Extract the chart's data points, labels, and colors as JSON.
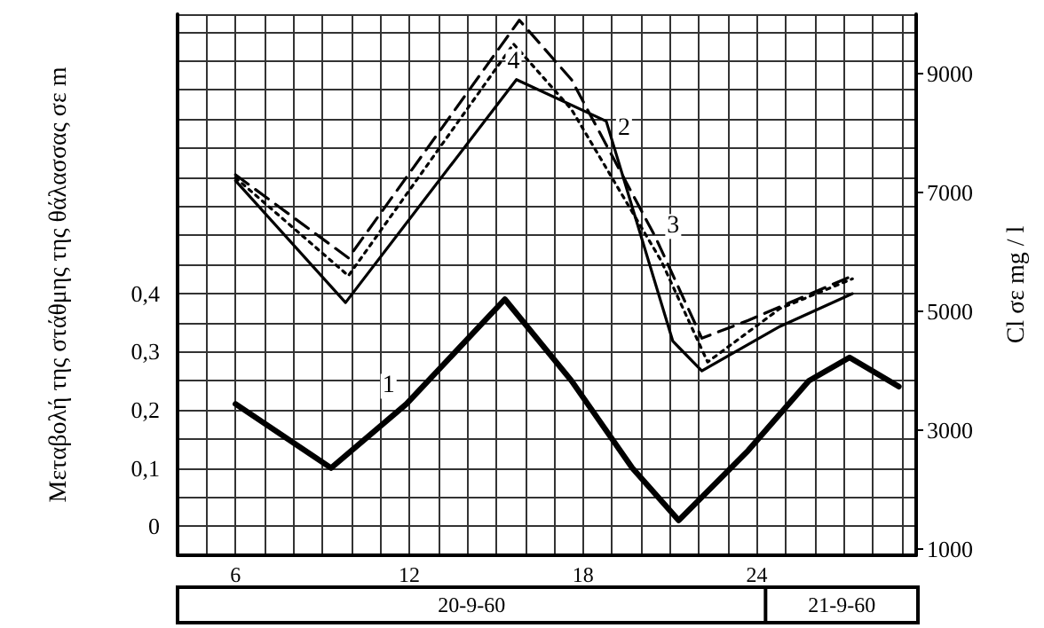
{
  "chart_data": {
    "type": "line",
    "ylabel": "Μεταβολή της στάθμης της θάλασσας σε m",
    "y2label": "Cl σε mg / l",
    "annotations": [
      "20-9-60",
      "21-9-60"
    ],
    "xlim": [
      4,
      29.5
    ],
    "xticks": [
      {
        "value": 4,
        "label": null
      },
      {
        "value": 5,
        "label": null
      },
      6,
      {
        "value": 7,
        "label": null
      },
      {
        "value": 8,
        "label": null
      },
      {
        "value": 9,
        "label": null
      },
      {
        "value": 10,
        "label": null
      },
      {
        "value": 11,
        "label": null
      },
      12,
      {
        "value": 13,
        "label": null
      },
      {
        "value": 14,
        "label": null
      },
      {
        "value": 15,
        "label": null
      },
      {
        "value": 16,
        "label": null
      },
      {
        "value": 17,
        "label": null
      },
      18,
      {
        "value": 19,
        "label": null
      },
      {
        "value": 20,
        "label": null
      },
      {
        "value": 21,
        "label": null
      },
      {
        "value": 22,
        "label": null
      },
      {
        "value": 23,
        "label": null
      },
      24,
      {
        "value": 25,
        "label": null
      },
      {
        "value": 26,
        "label": null
      },
      {
        "value": 27,
        "label": null
      },
      {
        "value": 28,
        "label": null
      },
      {
        "value": 29,
        "label": null
      }
    ],
    "ylim": [
      -0.05,
      0.88
    ],
    "yticks": [
      {
        "value": -0.05,
        "label": null
      },
      0,
      {
        "value": 0.05,
        "label": null
      },
      {
        "value": 0.1,
        "label": "0,1"
      },
      {
        "value": 0.15,
        "label": null
      },
      {
        "value": 0.2,
        "label": "0,2"
      },
      {
        "value": 0.25,
        "label": null
      },
      {
        "value": 0.3,
        "label": "0,3"
      },
      {
        "value": 0.35,
        "label": null
      },
      {
        "value": 0.4,
        "label": "0,4"
      },
      {
        "value": 0.45,
        "label": null
      },
      {
        "value": 0.5,
        "label": null
      },
      {
        "value": 0.55,
        "label": null
      },
      {
        "value": 0.6,
        "label": null
      },
      {
        "value": 0.65,
        "label": null
      },
      {
        "value": 0.7,
        "label": null
      },
      {
        "value": 0.75,
        "label": null
      },
      {
        "value": 0.8,
        "label": null
      },
      {
        "value": 0.85,
        "label": null
      }
    ],
    "y2lim": [
      900,
      10000
    ],
    "y2ticks": [
      1000,
      3000,
      5000,
      7000,
      9000
    ],
    "grid": true,
    "legend": false,
    "marker": "none",
    "series": [
      {
        "name": "1",
        "color": "#000000",
        "line_style": "solid",
        "x": [
          6,
          9.3,
          11.9,
          15.3,
          17.6,
          19.7,
          21.3,
          23.7,
          25.8,
          27.2,
          28.9
        ],
        "values": [
          0.21,
          0.1,
          0.21,
          0.39,
          0.25,
          0.1,
          0.01,
          0.13,
          0.25,
          0.29,
          0.24
        ]
      },
      {
        "name": "2",
        "color": "#000000",
        "line_style": "solid",
        "axis": "y2",
        "x": [
          6,
          9.8,
          15.7,
          18.8,
          21.1,
          22.1,
          24.8,
          27.3
        ],
        "values": [
          7200,
          5150,
          8900,
          8200,
          4500,
          4000,
          4750,
          5300
        ]
      },
      {
        "name": "3",
        "color": "#000000",
        "line_style": "dashed",
        "axis": "y2",
        "x": [
          6,
          9.9,
          15.8,
          17.6,
          20.5,
          22.1,
          23.7,
          27.3
        ],
        "values": [
          7300,
          5900,
          9900,
          8900,
          6250,
          4550,
          4850,
          5600
        ]
      },
      {
        "name": "4",
        "color": "#000000",
        "line_style": "dotted",
        "axis": "y2",
        "x": [
          6,
          9.9,
          15.6,
          17.6,
          20.7,
          22.3,
          24.8,
          27.3
        ],
        "values": [
          7250,
          5600,
          9500,
          8400,
          5850,
          4150,
          5050,
          5550
        ]
      }
    ]
  }
}
